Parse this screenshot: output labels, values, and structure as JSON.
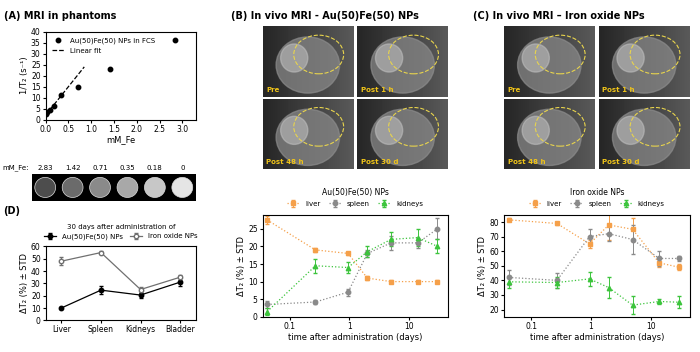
{
  "chart_data": [
    {
      "type": "scatter",
      "title": "(A) MRI in phantoms",
      "x_label": "mM_Fe",
      "y_label": "1/T₂ (s⁻¹)",
      "xlim": [
        0,
        3.3
      ],
      "xticks": [
        0.0,
        0.5,
        1.0,
        1.5,
        2.0,
        2.5,
        3.0
      ],
      "ylim": [
        0,
        40
      ],
      "yticks": [
        0,
        5,
        10,
        15,
        20,
        25,
        30,
        35,
        40
      ],
      "legend": "upper left",
      "series": [
        {
          "name": "Au(50)Fe(50) NPs in FCS",
          "type": "scatter",
          "color": "#000000",
          "marker": "circle",
          "x": [
            0.02,
            0.04,
            0.09,
            0.18,
            0.35,
            0.71,
            1.42,
            2.83
          ],
          "values": [
            2.8,
            3.3,
            4.5,
            6,
            11,
            15,
            23,
            36
          ]
        },
        {
          "name": "Linear fit",
          "type": "line",
          "color": "#000000",
          "line_style": "dashed",
          "x": [
            0,
            0.85
          ],
          "values": [
            2,
            24
          ]
        }
      ],
      "phantoms": {
        "label": "mM_Fe:",
        "concentrations": [
          2.83,
          1.42,
          0.71,
          0.35,
          0.18,
          0
        ]
      }
    },
    {
      "type": "line",
      "title": "(B) In vivo MRI - Au(50)Fe(50) NPs",
      "images": [
        "Pre",
        "Post 1 h",
        "Post 48 h",
        "Post 30 d"
      ],
      "x_label": "time after administration (days)",
      "y_label": "ΔT₂ (%) ± STD",
      "log": "x",
      "xlim": [
        0.035,
        45
      ],
      "xticks": [
        0.1,
        1,
        10
      ],
      "ylim": [
        0,
        29
      ],
      "yticks": [
        0,
        5,
        10,
        15,
        20,
        25
      ],
      "legend": "upper center",
      "legend_title": "Au(50)Fe(50) NPs",
      "x": [
        0.042,
        0.27,
        0.95,
        2,
        5,
        14,
        30
      ],
      "series": [
        {
          "name": "liver",
          "color": "#f5a04a",
          "marker": "square",
          "line_style": "dotted",
          "values": [
            27.5,
            19,
            18,
            11,
            10,
            10,
            10
          ],
          "errors": [
            1,
            0.5,
            0.5,
            0.5,
            0.5,
            0.5,
            0.5
          ]
        },
        {
          "name": "spleen",
          "color": "#8a8a8a",
          "marker": "circle",
          "line_style": "dotted",
          "values": [
            3.5,
            4.2,
            7,
            18,
            21,
            21,
            25
          ],
          "errors": [
            1,
            0.5,
            1,
            1,
            2,
            1.5,
            3
          ]
        },
        {
          "name": "kidneys",
          "color": "#3cc43c",
          "marker": "triangle",
          "line_style": "dotted",
          "values": [
            1.5,
            14.5,
            14,
            18.5,
            22,
            22.5,
            20
          ],
          "errors": [
            1,
            2,
            1.5,
            1.5,
            2,
            2.5,
            2
          ]
        }
      ]
    },
    {
      "type": "line",
      "title": "(C) In vivo MRI – Iron oxide NPs",
      "images": [
        "Pre",
        "Post 1 h",
        "Post 48 h",
        "Post 30 d"
      ],
      "x_label": "time after administration (days)",
      "y_label": "ΔT₂ (%) ± STD",
      "log": "x",
      "xlim": [
        0.035,
        45
      ],
      "xticks": [
        0.1,
        1,
        10
      ],
      "ylim": [
        15,
        85
      ],
      "yticks": [
        20,
        30,
        40,
        50,
        60,
        70,
        80
      ],
      "legend": "upper center",
      "legend_title": "Iron oxide NPs",
      "x": [
        0.042,
        0.27,
        0.95,
        2,
        5,
        14,
        30
      ],
      "series": [
        {
          "name": "liver",
          "color": "#f5a04a",
          "marker": "square",
          "line_style": "dotted",
          "values": [
            81.5,
            79,
            65,
            78,
            75,
            52,
            49
          ],
          "errors": [
            1,
            1,
            3,
            10,
            8,
            3,
            2
          ]
        },
        {
          "name": "spleen",
          "color": "#8a8a8a",
          "marker": "circle",
          "line_style": "dotted",
          "values": [
            42,
            40,
            70,
            72,
            68,
            55,
            55
          ],
          "errors": [
            5,
            5,
            5,
            5,
            10,
            5,
            2
          ]
        },
        {
          "name": "kidneys",
          "color": "#3cc43c",
          "marker": "triangle",
          "line_style": "dotted",
          "values": [
            39,
            38.5,
            41,
            35,
            23,
            25.5,
            25
          ],
          "errors": [
            4,
            4,
            5,
            7,
            6,
            2,
            4
          ]
        }
      ]
    },
    {
      "type": "line",
      "title": "(D)",
      "y_label": "ΔT₂ (%) ± STD",
      "categories": [
        "Liver",
        "Spleen",
        "Kidneys",
        "Bladder"
      ],
      "ylim": [
        0,
        60
      ],
      "yticks": [
        0,
        10,
        20,
        30,
        40,
        50,
        60
      ],
      "legend": "upper center",
      "legend_title": "30 days after administration of",
      "series": [
        {
          "name": "Au(50)Fe(50) NPs",
          "color": "#000000",
          "marker": "circle",
          "line_style": "solid",
          "values": [
            10,
            24.5,
            20.5,
            31
          ],
          "errors": [
            1,
            3,
            2,
            3
          ]
        },
        {
          "name": "Iron oxide NPs",
          "color": "#707070",
          "marker": "open_circle",
          "line_style": "solid",
          "values": [
            48,
            55,
            25,
            35
          ],
          "errors": [
            3,
            1.5,
            2,
            2
          ]
        }
      ]
    }
  ]
}
